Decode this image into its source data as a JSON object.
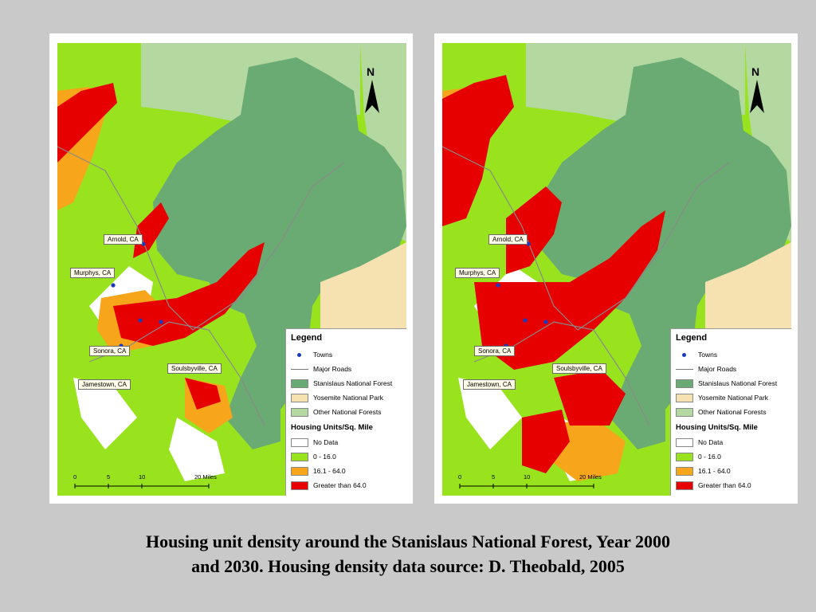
{
  "colors": {
    "background": "#c9c9c9",
    "stanislaus_nf": "#6aab73",
    "yosemite_np": "#f6e2b1",
    "other_nf": "#b3d9a1",
    "no_data": "#ffffff",
    "density_low": "#99e31e",
    "density_mid": "#f7a51a",
    "density_high": "#e60000",
    "towns": "#1a3bbf",
    "roads": "#8a8a8a"
  },
  "maps": [
    {
      "year": "2000",
      "north": "N",
      "towns": [
        "Arnold, CA",
        "Murphys, CA",
        "Sonora, CA",
        "Soulsbyville, CA",
        "Jamestown, CA"
      ],
      "scale": [
        "0",
        "5",
        "10",
        "20 Miles"
      ]
    },
    {
      "year": "2030",
      "north": "N",
      "towns": [
        "Arnold, CA",
        "Murphys, CA",
        "Sonora, CA",
        "Soulsbyville, CA",
        "Jamestown, CA"
      ],
      "scale": [
        "0",
        "5",
        "10",
        "20 Miles"
      ]
    }
  ],
  "legend": {
    "title": "Legend",
    "items": [
      "Towns",
      "Major Roads",
      "Stanislaus National Forest",
      "Yosemite National Park",
      "Other National Forests"
    ],
    "density_title": "Housing Units/Sq. Mile",
    "density_items": [
      "No Data",
      "0 - 16.0",
      "16.1 - 64.0",
      "Greater than 64.0"
    ]
  },
  "caption": {
    "line1": "Housing unit density around the Stanislaus National Forest, Year 2000",
    "line2": "and 2030.  Housing density data source: D. Theobald, 2005"
  }
}
